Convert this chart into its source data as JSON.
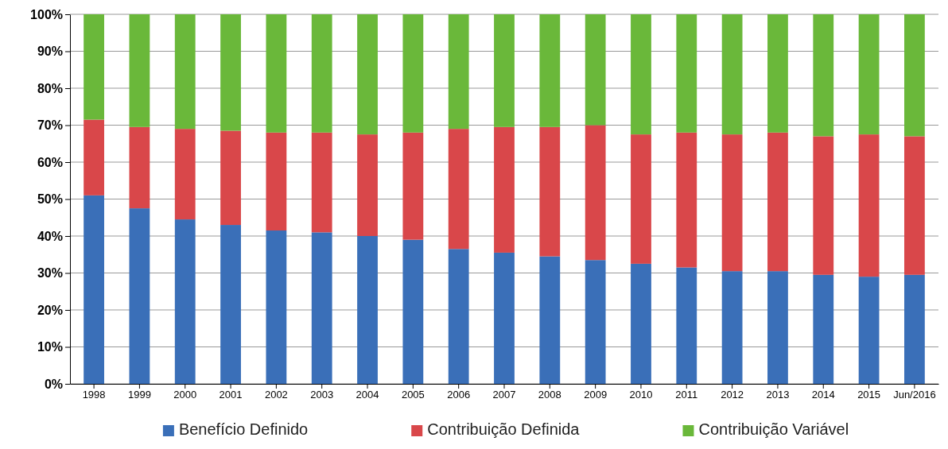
{
  "chart_data": {
    "type": "bar",
    "stacked": true,
    "categories": [
      "1998",
      "1999",
      "2000",
      "2001",
      "2002",
      "2003",
      "2004",
      "2005",
      "2006",
      "2007",
      "2008",
      "2009",
      "2010",
      "2011",
      "2012",
      "2013",
      "2014",
      "2015",
      "Jun/2016"
    ],
    "series": [
      {
        "name": "Benefício Definido",
        "color": "#3a6fb8",
        "values": [
          51,
          47.5,
          44.5,
          43,
          41.5,
          41,
          40,
          39,
          36.5,
          35.5,
          34.5,
          33.5,
          32.5,
          31.5,
          30.5,
          30.5,
          29.5,
          29,
          29.5
        ]
      },
      {
        "name": "Contribuição Definida",
        "color": "#d9474a",
        "values": [
          20.5,
          22,
          24.5,
          25.5,
          26.5,
          27,
          27.5,
          29,
          32.5,
          34,
          35,
          36.5,
          35,
          36.5,
          37,
          37.5,
          37.5,
          38.5,
          37.5
        ]
      },
      {
        "name": "Contribuição Variável",
        "color": "#6ab83a",
        "values": [
          28.5,
          30.5,
          31,
          31.5,
          32,
          32,
          32.5,
          32,
          31,
          30.5,
          30.5,
          30,
          32.5,
          32,
          32.5,
          32,
          33,
          32.5,
          33
        ]
      }
    ],
    "ylim": [
      0,
      100
    ],
    "yticks": [
      {
        "value": 0,
        "label": "0%"
      },
      {
        "value": 10,
        "label": "10%"
      },
      {
        "value": 20,
        "label": "20%"
      },
      {
        "value": 30,
        "label": "30%"
      },
      {
        "value": 40,
        "label": "40%"
      },
      {
        "value": 50,
        "label": "50%"
      },
      {
        "value": 60,
        "label": "60%"
      },
      {
        "value": 70,
        "label": "70%"
      },
      {
        "value": 80,
        "label": "80%"
      },
      {
        "value": 90,
        "label": "90%"
      },
      {
        "value": 100,
        "label": "100%"
      }
    ],
    "grid": "y",
    "legend": "bottom"
  }
}
